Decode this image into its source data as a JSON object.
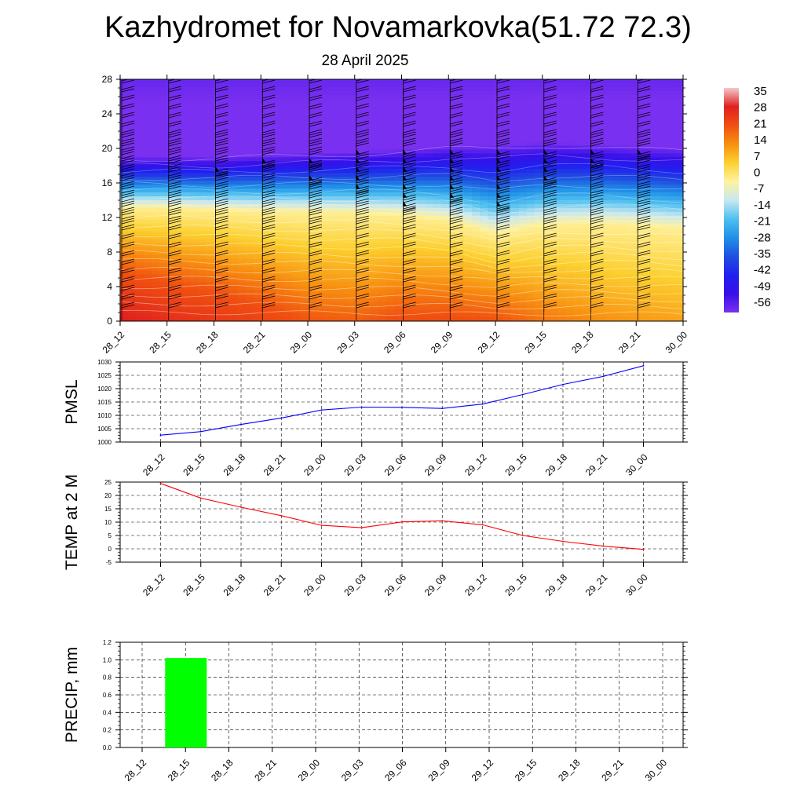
{
  "title": "Kazhydromet for Novamarkovka(51.72 72.3)",
  "subtitle": "28 April 2025",
  "time_labels": [
    "28_12",
    "28_15",
    "28_18",
    "28_21",
    "29_00",
    "29_03",
    "29_06",
    "29_09",
    "29_12",
    "29_15",
    "29_18",
    "29_21",
    "30_00"
  ],
  "chart_data": [
    {
      "type": "heatmap",
      "title": "",
      "xlabel": "",
      "ylabel": "",
      "x": [
        "28_12",
        "28_15",
        "28_18",
        "28_21",
        "29_00",
        "29_03",
        "29_06",
        "29_09",
        "29_12",
        "29_15",
        "29_18",
        "29_21",
        "30_00"
      ],
      "y_ticks": [
        0,
        4,
        8,
        12,
        16,
        20,
        24,
        28
      ],
      "ylim": [
        0,
        28
      ],
      "freezing_level": [
        13.0,
        13.0,
        12.8,
        12.6,
        12.5,
        12.4,
        12.2,
        11.6,
        10.0,
        11.0,
        11.2,
        11.0,
        10.6
      ],
      "cold_core_level": [
        19.5,
        19.5,
        19.5,
        19.8,
        20.0,
        20.2,
        20.5,
        21.0,
        21.2,
        21.5,
        21.3,
        21.0,
        20.8
      ],
      "surface_temperature": [
        24,
        19,
        16,
        12.5,
        8.5,
        7.5,
        10,
        10,
        9,
        5,
        2.5,
        1,
        0
      ],
      "wind_barbs": "wind barbs at each time and level",
      "pennant_barbs": [
        {
          "x": "28_18",
          "levels": [
            17
          ]
        },
        {
          "x": "28_21",
          "levels": [
            18
          ]
        },
        {
          "x": "29_00",
          "levels": [
            16,
            18
          ]
        },
        {
          "x": "29_03",
          "levels": [
            15,
            16,
            17,
            18,
            19
          ]
        },
        {
          "x": "29_06",
          "levels": [
            13,
            14,
            15,
            16,
            17,
            18,
            19
          ]
        },
        {
          "x": "29_09",
          "levels": [
            14,
            15,
            16,
            17,
            18,
            19
          ]
        },
        {
          "x": "29_12",
          "levels": [
            13,
            14,
            15,
            16,
            17,
            18,
            19
          ]
        },
        {
          "x": "29_15",
          "levels": [
            16,
            17,
            18,
            19
          ]
        },
        {
          "x": "29_18",
          "levels": [
            18,
            19
          ]
        },
        {
          "x": "29_21",
          "levels": [
            19
          ]
        }
      ],
      "colorbar": {
        "labels": [
          "35",
          "28",
          "21",
          "14",
          "7",
          "0",
          "-7",
          "-14",
          "-21",
          "-28",
          "-35",
          "-42",
          "-49",
          "-56"
        ],
        "stops": [
          {
            "t": 35,
            "color": "#f4c8c8"
          },
          {
            "t": 28,
            "color": "#e02020"
          },
          {
            "t": 14,
            "color": "#f05010"
          },
          {
            "t": 7,
            "color": "#f89010"
          },
          {
            "t": 0,
            "color": "#fcd030"
          },
          {
            "t": -7,
            "color": "#fff2a0"
          },
          {
            "t": -14,
            "color": "#c8e8f0"
          },
          {
            "t": -21,
            "color": "#50c0f0"
          },
          {
            "t": -28,
            "color": "#2090e8"
          },
          {
            "t": -35,
            "color": "#2050e0"
          },
          {
            "t": -42,
            "color": "#2020f0"
          },
          {
            "t": -49,
            "color": "#3810e8"
          },
          {
            "t": -56,
            "color": "#7a30f0"
          }
        ]
      }
    },
    {
      "type": "line",
      "ylabel": "PMSL",
      "x": [
        "28_12",
        "28_15",
        "28_18",
        "28_21",
        "29_00",
        "29_03",
        "29_06",
        "29_09",
        "29_12",
        "29_15",
        "29_18",
        "29_21",
        "30_00"
      ],
      "y_ticks": [
        1000,
        1005,
        1010,
        1015,
        1020,
        1025,
        1030
      ],
      "ylim": [
        1000,
        1030
      ],
      "grid": true,
      "series": [
        {
          "color": "#0000ff",
          "values": [
            1002.6,
            1003.9,
            1006.6,
            1009.0,
            1012.0,
            1013.1,
            1013.0,
            1012.6,
            1014.2,
            1017.8,
            1021.6,
            1024.6,
            1028.6
          ]
        }
      ]
    },
    {
      "type": "line",
      "ylabel": "TEMP at 2 M",
      "x": [
        "28_12",
        "28_15",
        "28_18",
        "28_21",
        "29_00",
        "29_03",
        "29_06",
        "29_09",
        "29_12",
        "29_15",
        "29_18",
        "29_21",
        "30_00"
      ],
      "y_ticks": [
        -5,
        0,
        5,
        10,
        15,
        20,
        25
      ],
      "ylim": [
        -5,
        25
      ],
      "grid": true,
      "series": [
        {
          "color": "#ff0000",
          "values": [
            24.5,
            19.0,
            15.6,
            12.4,
            8.8,
            7.9,
            10.1,
            10.5,
            9.0,
            5.0,
            2.8,
            1.0,
            -0.2
          ]
        }
      ]
    },
    {
      "type": "bar",
      "ylabel": "PRECIP, mm",
      "categories": [
        "28_12",
        "28_15",
        "28_18",
        "28_21",
        "29_00",
        "29_03",
        "29_06",
        "29_09",
        "29_12",
        "29_15",
        "29_18",
        "29_21",
        "30_00"
      ],
      "values": [
        0,
        1.02,
        0,
        0,
        0,
        0,
        0,
        0,
        0,
        0,
        0,
        0,
        0
      ],
      "y_ticks": [
        "0.0",
        "0.2",
        "0.4",
        "0.6",
        "0.8",
        "1.0",
        "1.2"
      ],
      "ylim": [
        0,
        1.2
      ],
      "grid": true,
      "bar_color": "#00ff00"
    }
  ]
}
